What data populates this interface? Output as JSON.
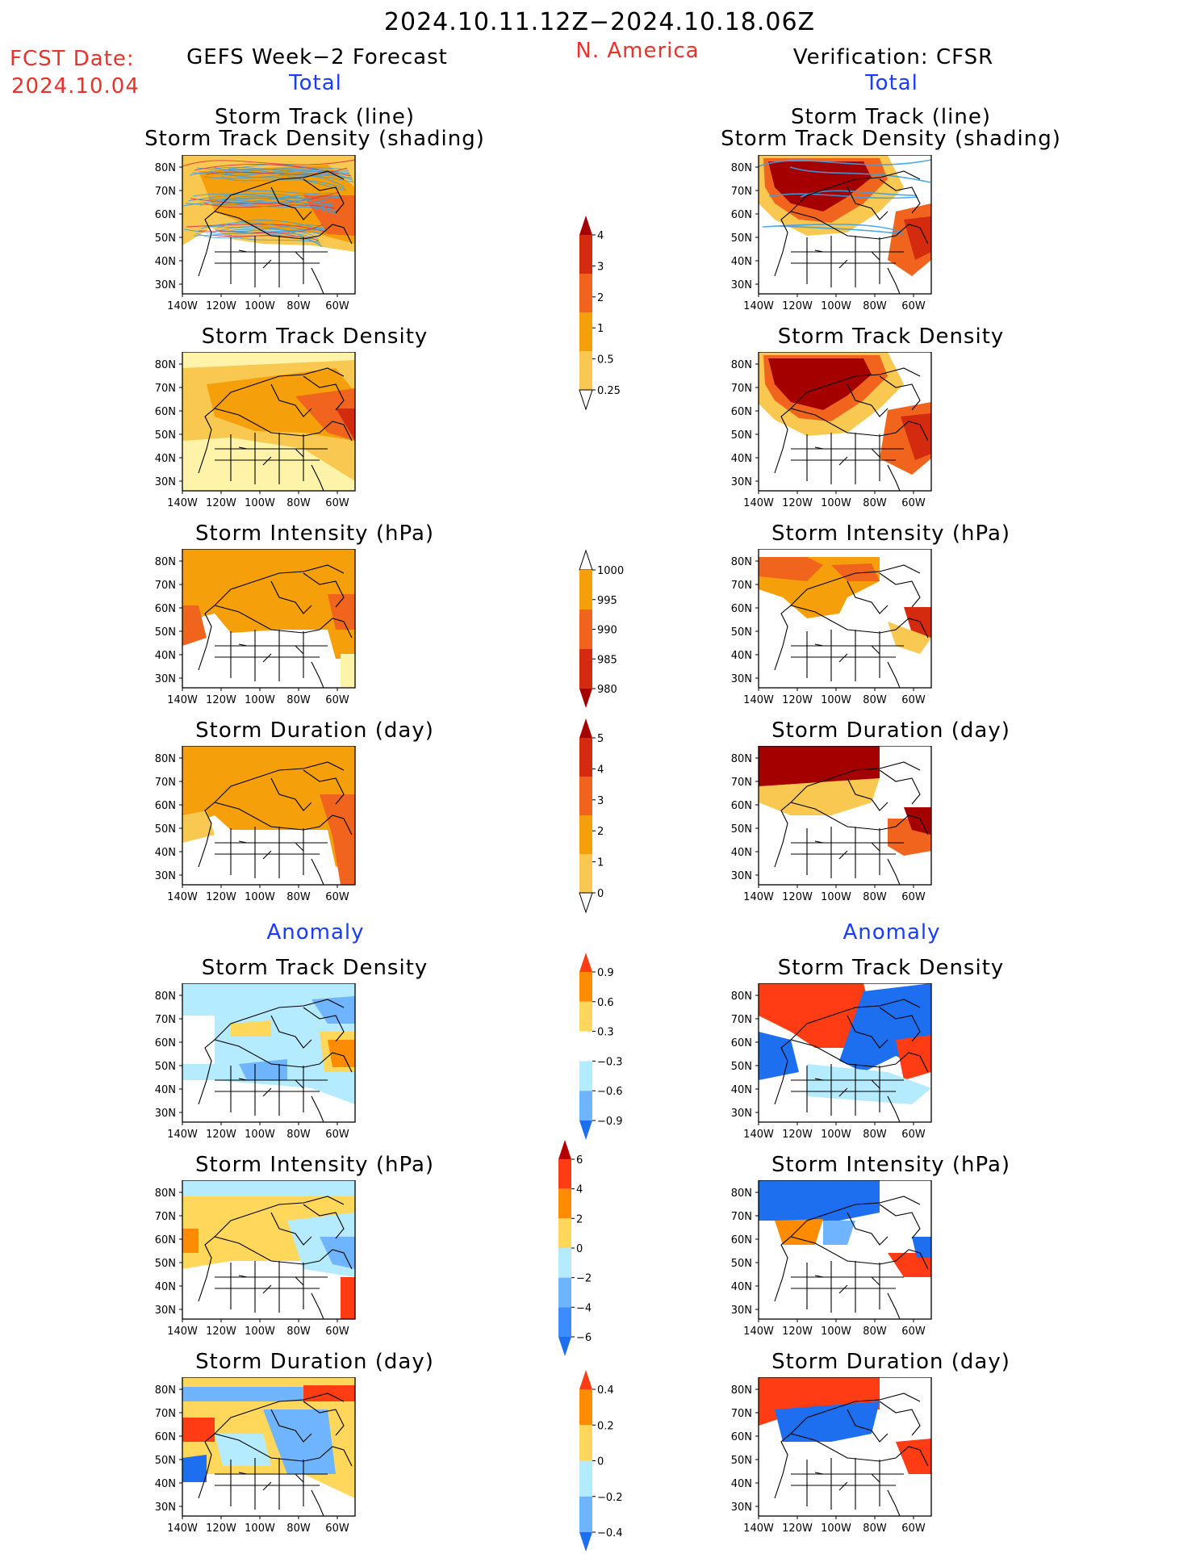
{
  "header": {
    "period": "2024.10.11.12Z−2024.10.18.06Z",
    "region": "N. America",
    "fcst_label": "FCST Date:",
    "fcst_date": "2024.10.04",
    "left_title": "GEFS Week−2 Forecast",
    "right_title": "Verification: CFSR",
    "left_total": "Total",
    "right_total": "Total",
    "left_anomaly": "Anomaly",
    "right_anomaly": "Anomaly"
  },
  "panel_titles": {
    "track_line": "Storm Track (line)",
    "track_shading": "Storm Track Density (shading)",
    "density": "Storm Track Density",
    "intensity": "Storm Intensity (hPa)",
    "duration": "Storm Duration (day)"
  },
  "axes": {
    "lon_labels": [
      "140W",
      "120W",
      "100W",
      "80W",
      "60W"
    ],
    "lat_labels": [
      "80N",
      "70N",
      "60N",
      "50N",
      "40N",
      "30N"
    ]
  },
  "colorbars": {
    "density_total": {
      "labels": [
        "4",
        "3",
        "2",
        "1",
        "0.5",
        "0.25"
      ],
      "colors": [
        "#a50000",
        "#d42a10",
        "#f0641e",
        "#f5a00a",
        "#f8c850",
        "#fff3aa"
      ]
    },
    "intensity_total": {
      "labels": [
        "1000",
        "995",
        "990",
        "985",
        "980"
      ],
      "colors": [
        "#fff3aa",
        "#f5a00a",
        "#f0641e",
        "#d42a10",
        "#a50000"
      ]
    },
    "duration_total": {
      "labels": [
        "5",
        "4",
        "3",
        "2",
        "1",
        "0"
      ],
      "colors": [
        "#a50000",
        "#d42a10",
        "#f0641e",
        "#f5a00a",
        "#f8c850",
        "#fff3aa"
      ]
    },
    "density_anom": {
      "labels": [
        "0.9",
        "0.6",
        "0.3",
        "−0.3",
        "−0.6",
        "−0.9"
      ],
      "colors": [
        "#ff3c14",
        "#ff8c00",
        "#ffd75a",
        "#ffffff",
        "#b4ebff",
        "#6eb4ff",
        "#1e6ef0"
      ]
    },
    "intensity_anom": {
      "labels": [
        "6",
        "4",
        "2",
        "0",
        "−2",
        "−4",
        "−6"
      ],
      "colors": [
        "#b40000",
        "#ff3c14",
        "#ff8c00",
        "#ffd75a",
        "#b4ebff",
        "#6eb4ff",
        "#3c8cff",
        "#1e6ef0"
      ]
    },
    "duration_anom": {
      "labels": [
        "0.4",
        "0.2",
        "0",
        "−0.2",
        "−0.4"
      ],
      "colors": [
        "#ff3c14",
        "#ff8c00",
        "#ffd75a",
        "#b4ebff",
        "#6eb4ff",
        "#1e6ef0"
      ]
    }
  }
}
